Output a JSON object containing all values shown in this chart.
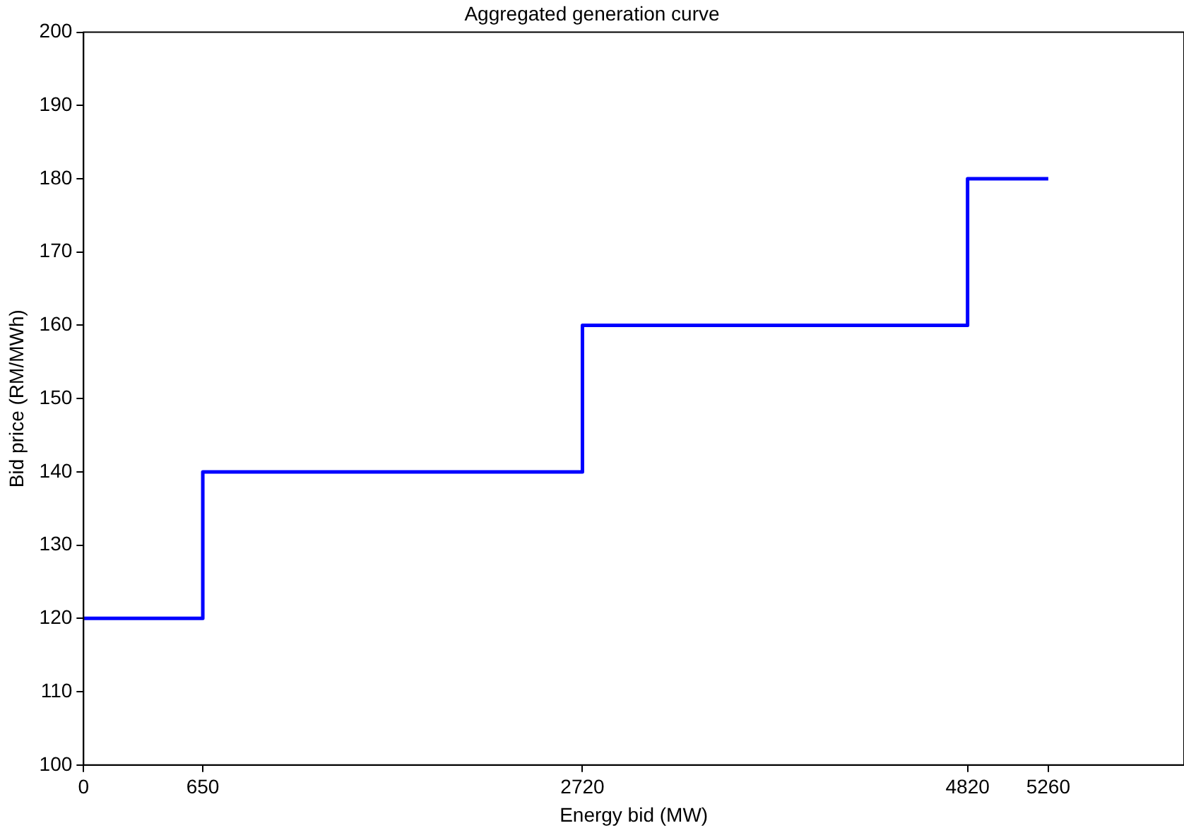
{
  "chart_data": {
    "type": "step",
    "title": "Aggregated generation curve",
    "xlabel": "Energy bid (MW)",
    "ylabel": "Bid price (RM/MWh)",
    "x": [
      0,
      650,
      2720,
      4820,
      5260
    ],
    "series": [
      {
        "color": "#0000ff",
        "values": [
          120,
          140,
          160,
          180,
          180
        ]
      }
    ],
    "xlim": [
      0,
      6000
    ],
    "xticks": [
      0,
      650,
      2720,
      4820,
      5260
    ],
    "ylim": [
      100,
      200
    ],
    "yticks": [
      100,
      110,
      120,
      130,
      140,
      150,
      160,
      170,
      180,
      190,
      200
    ],
    "grid": false,
    "legend": false
  }
}
